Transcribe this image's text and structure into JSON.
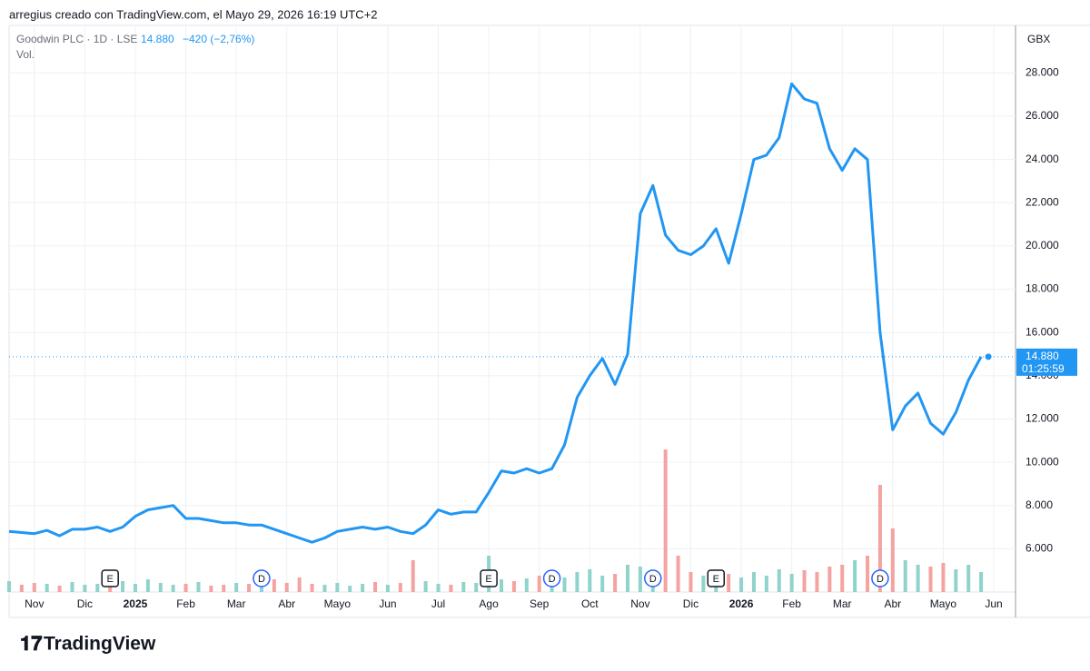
{
  "header": {
    "credit": "arregius creado con TradingView.com, el Mayo 29, 2026 16:19 UTC+2",
    "logo": "TradingView"
  },
  "chart_data": {
    "type": "line",
    "title": "Goodwin PLC · 1D · LSE",
    "last_price": 14880,
    "last_price_label": "14.880",
    "change_label": "−420 (−2,76%)",
    "countdown": "01:25:59",
    "currency": "GBX",
    "categories": [
      null,
      null,
      "Nov",
      null,
      null,
      null,
      "Dic",
      null,
      null,
      null,
      "2025",
      null,
      null,
      null,
      "Feb",
      null,
      null,
      null,
      "Mar",
      null,
      null,
      null,
      "Abr",
      null,
      null,
      null,
      "Mayo",
      null,
      null,
      null,
      "Jun",
      null,
      null,
      null,
      "Jul",
      null,
      null,
      null,
      "Ago",
      null,
      null,
      null,
      "Sep",
      null,
      null,
      null,
      "Oct",
      null,
      null,
      null,
      "Nov",
      null,
      null,
      null,
      "Dic",
      null,
      null,
      null,
      "2026",
      null,
      null,
      null,
      "Feb",
      null,
      null,
      null,
      "Mar",
      null,
      null,
      null,
      "Abr",
      null,
      null,
      null,
      "Mayo",
      null,
      null,
      null,
      "Jun"
    ],
    "series": [
      {
        "name": "Goodwin PLC · 1D · LSE",
        "color": "#2196f3",
        "values": [
          6800,
          6750,
          6700,
          6850,
          6600,
          6900,
          6900,
          7000,
          6800,
          7000,
          7500,
          7800,
          7900,
          8000,
          7400,
          7400,
          7300,
          7200,
          7200,
          7100,
          7100,
          6900,
          6700,
          6500,
          6300,
          6500,
          6800,
          6900,
          7000,
          6900,
          7000,
          6800,
          6700,
          7100,
          7800,
          7600,
          7700,
          7700,
          8600,
          9600,
          9500,
          9700,
          9500,
          9700,
          10800,
          13000,
          14000,
          14800,
          13600,
          15000,
          21500,
          22800,
          20500,
          19800,
          19600,
          20000,
          20800,
          19200,
          21500,
          24000,
          24200,
          25000,
          27500,
          26800,
          26600,
          24500,
          23500,
          24500,
          24000,
          16000,
          11500,
          12600,
          13200,
          11800,
          11300,
          12300,
          13800,
          14880,
          null
        ]
      },
      {
        "name": "Vol.",
        "up_color": "#8fd3cb",
        "down_color": "#f4a3a0",
        "values": [
          12,
          8,
          10,
          9,
          7,
          11,
          8,
          9,
          10,
          12,
          9,
          14,
          10,
          8,
          9,
          11,
          7,
          8,
          10,
          9,
          12,
          14,
          10,
          16,
          9,
          8,
          10,
          7,
          9,
          11,
          8,
          10,
          35,
          12,
          9,
          8,
          11,
          10,
          40,
          14,
          12,
          15,
          18,
          20,
          16,
          22,
          25,
          18,
          20,
          30,
          28,
          24,
          157,
          40,
          22,
          18,
          24,
          20,
          16,
          22,
          18,
          25,
          20,
          24,
          22,
          28,
          30,
          35,
          40,
          118,
          70,
          35,
          30,
          28,
          32,
          25,
          30,
          22,
          null
        ]
      }
    ],
    "events": [
      {
        "label": "E",
        "category_index": 8
      },
      {
        "label": "D",
        "category_index": 20
      },
      {
        "label": "E",
        "category_index": 38
      },
      {
        "label": "D",
        "category_index": 43
      },
      {
        "label": "D",
        "category_index": 51
      },
      {
        "label": "E",
        "category_index": 56
      },
      {
        "label": "D",
        "category_index": 69
      }
    ],
    "ylim": [
      4000,
      30200
    ],
    "yticks": [
      {
        "value": 6000,
        "label": "6.000"
      },
      {
        "value": 8000,
        "label": "8.000"
      },
      {
        "value": 10000,
        "label": "10.000"
      },
      {
        "value": 12000,
        "label": "12.000"
      },
      {
        "value": 14000,
        "label": "14.000"
      },
      {
        "value": 16000,
        "label": "16.000"
      },
      {
        "value": 18000,
        "label": "18.000"
      },
      {
        "value": 20000,
        "label": "20.000"
      },
      {
        "value": 22000,
        "label": "22.000"
      },
      {
        "value": 24000,
        "label": "24.000"
      },
      {
        "value": 26000,
        "label": "26.000"
      },
      {
        "value": 28000,
        "label": "28.000"
      }
    ],
    "grid": true
  }
}
